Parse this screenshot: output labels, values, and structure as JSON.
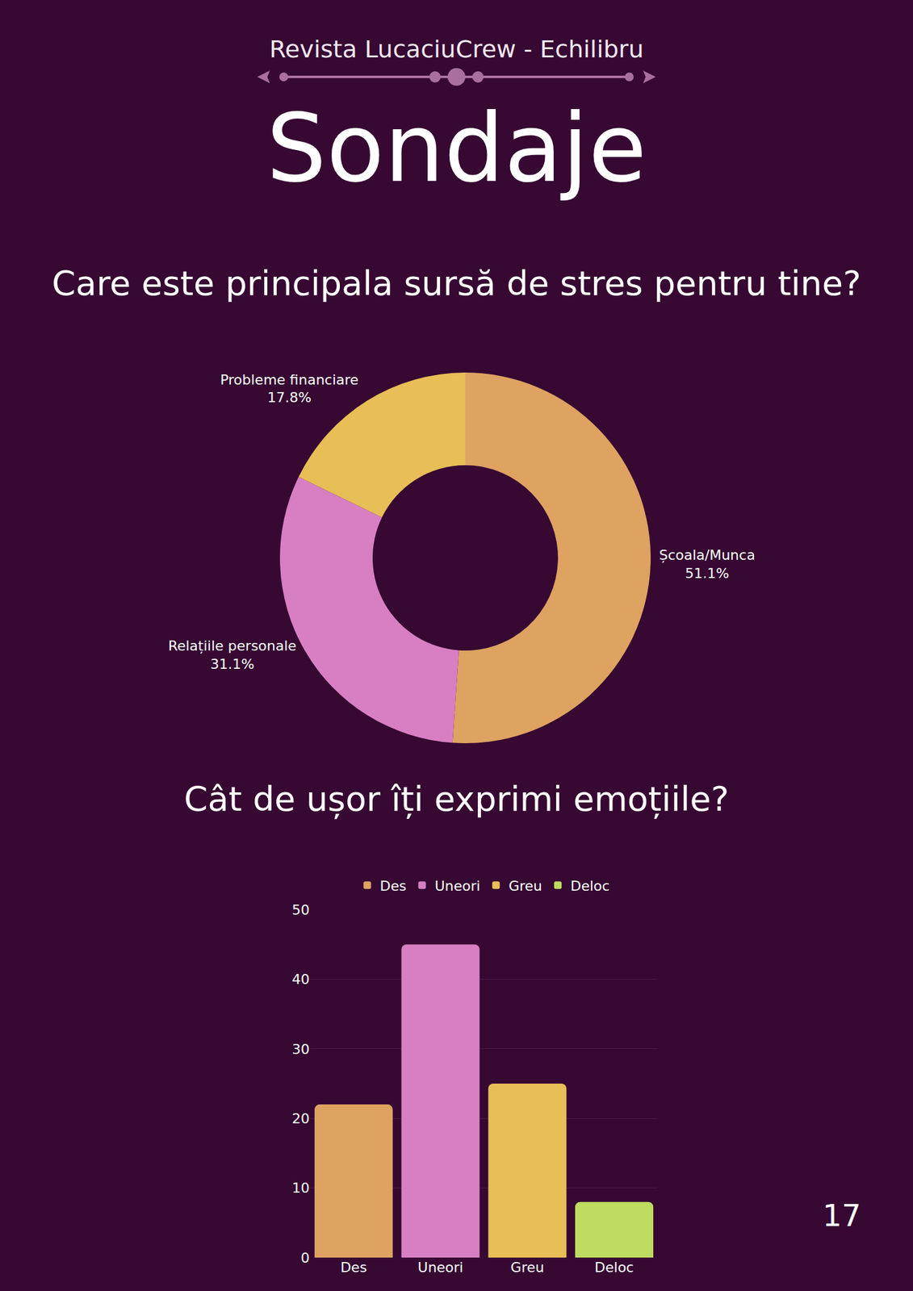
{
  "header": {
    "magazine": "Revista LucaciuCrew - Echilibru",
    "heading": "Sondaje"
  },
  "page_number": 17,
  "chart_data": [
    {
      "type": "donut",
      "title": "Care este principala sursă de stres pentru tine?",
      "categories": [
        "Școala/Munca",
        "Relațiile personale",
        "Probleme financiare"
      ],
      "values": [
        51.1,
        31.1,
        17.8
      ],
      "value_labels": [
        "51.1%",
        "31.1%",
        "17.8%"
      ],
      "colors": [
        "#dea261",
        "#d87fc3",
        "#e8be57"
      ],
      "data_labels": true
    },
    {
      "type": "bar",
      "title": "Cât de ușor îți exprimi emoțiile?",
      "categories": [
        "Des",
        "Uneori",
        "Greu",
        "Deloc"
      ],
      "values": [
        22,
        45,
        25,
        8
      ],
      "colors": [
        "#dea261",
        "#d87fc3",
        "#e8be57",
        "#bedc5f"
      ],
      "ylim": [
        0,
        50
      ],
      "yticks": [
        0,
        10,
        20,
        30,
        40,
        50
      ],
      "grid": true,
      "legend": "top"
    }
  ]
}
